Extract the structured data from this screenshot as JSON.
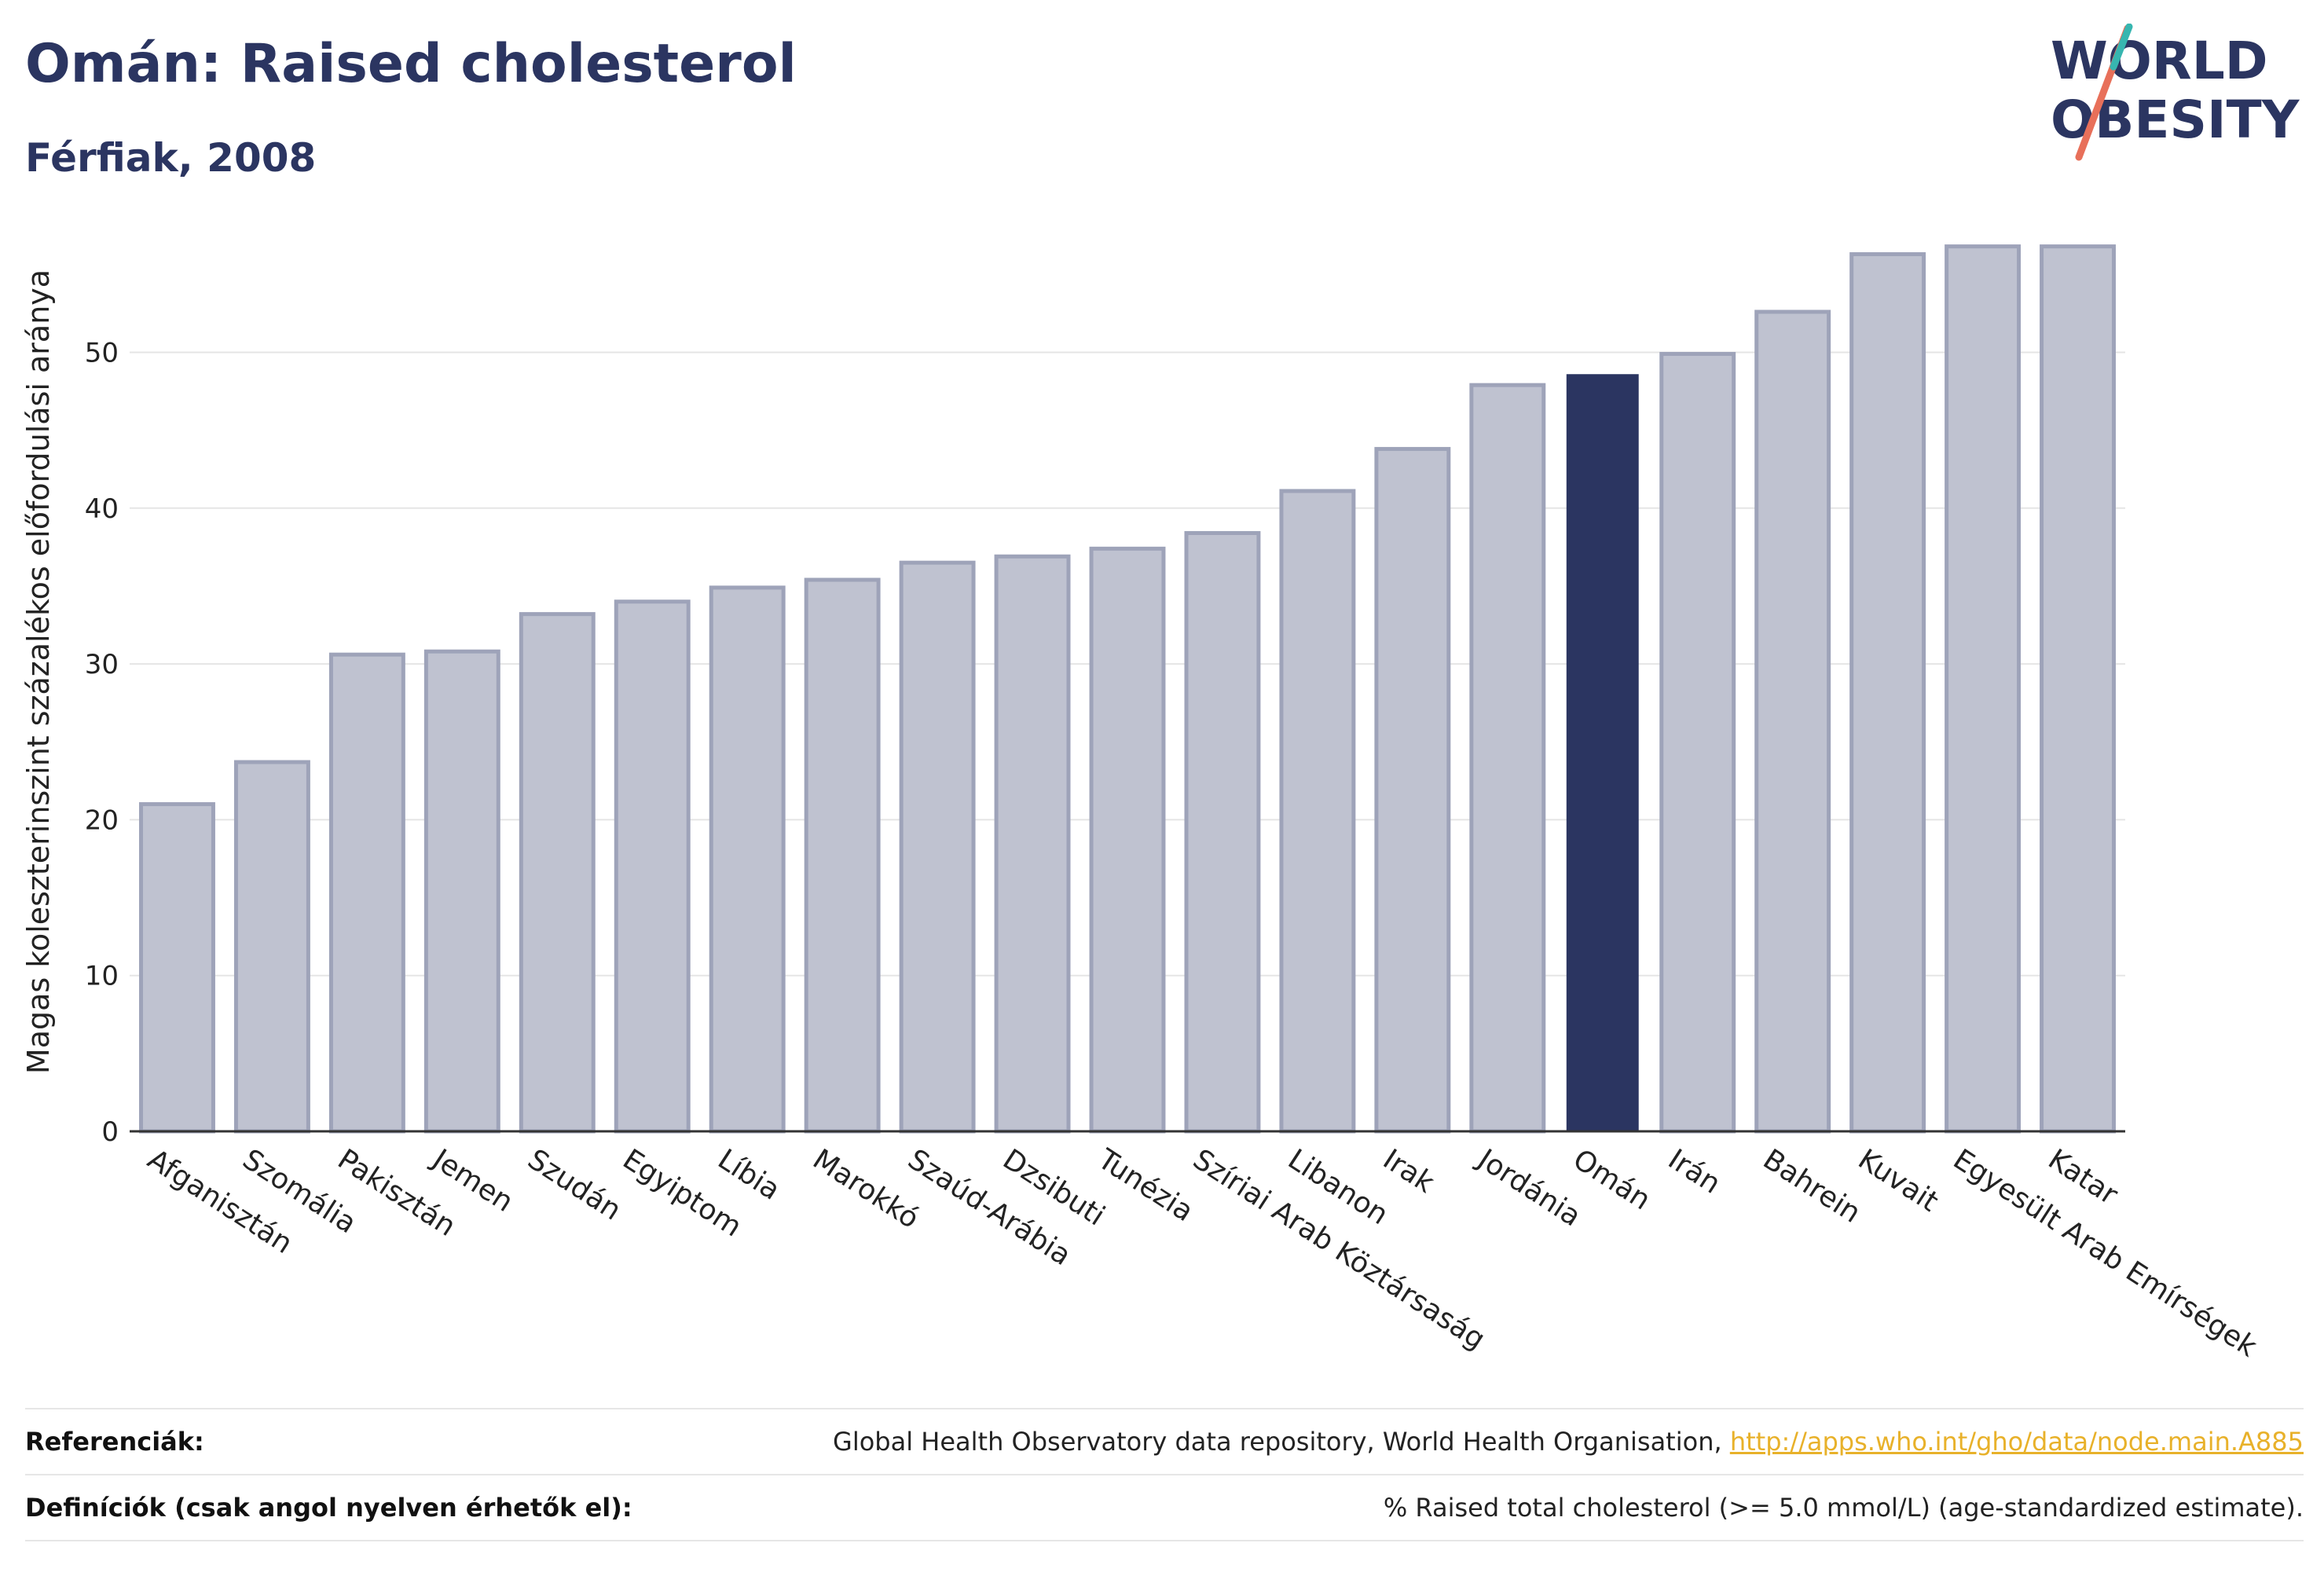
{
  "header": {
    "title": "Omán: Raised cholesterol",
    "subtitle": "Férfiak, 2008"
  },
  "logo": {
    "line1": "WORLD",
    "line2": "OBESITY"
  },
  "chart_data": {
    "type": "bar",
    "categories": [
      "Afganisztán",
      "Szomália",
      "Pakisztán",
      "Jemen",
      "Szudán",
      "Egyiptom",
      "Líbia",
      "Marokkó",
      "Szaúd-Arábia",
      "Dzsibuti",
      "Tunézia",
      "Szíriai Arab Köztársaság",
      "Libanon",
      "Irak",
      "Jordánia",
      "Omán",
      "Irán",
      "Bahrein",
      "Kuvait",
      "Egyesült Arab Emírségek",
      "Katar"
    ],
    "values": [
      21.0,
      23.7,
      30.6,
      30.8,
      33.2,
      34.0,
      34.9,
      35.4,
      36.5,
      36.9,
      37.4,
      38.4,
      41.1,
      43.8,
      47.9,
      48.6,
      49.9,
      52.6,
      56.3,
      56.8,
      56.8
    ],
    "highlight": "Omán",
    "ylabel": "Magas koleszterinszint százalékos előfordulási aránya",
    "ylim": [
      0,
      59
    ],
    "yticks": [
      0,
      10,
      20,
      30,
      40,
      50
    ],
    "grid": true,
    "colors": {
      "bar": "#bfc2d0",
      "bar_border": "#9ea3b9",
      "highlight": "#2b3561",
      "grid": "#e5e5e5",
      "axis": "#333333"
    }
  },
  "footer": {
    "references_label": "Referenciák:",
    "references_text": "Global Health Observatory data repository, World Health Organisation, ",
    "references_link": "http://apps.who.int/gho/data/node.main.A885",
    "definitions_label": "Definíciók (csak angol nyelven érhetők el):",
    "definitions_text": "% Raised total cholesterol (>= 5.0 mmol/L) (age-standardized estimate)."
  }
}
